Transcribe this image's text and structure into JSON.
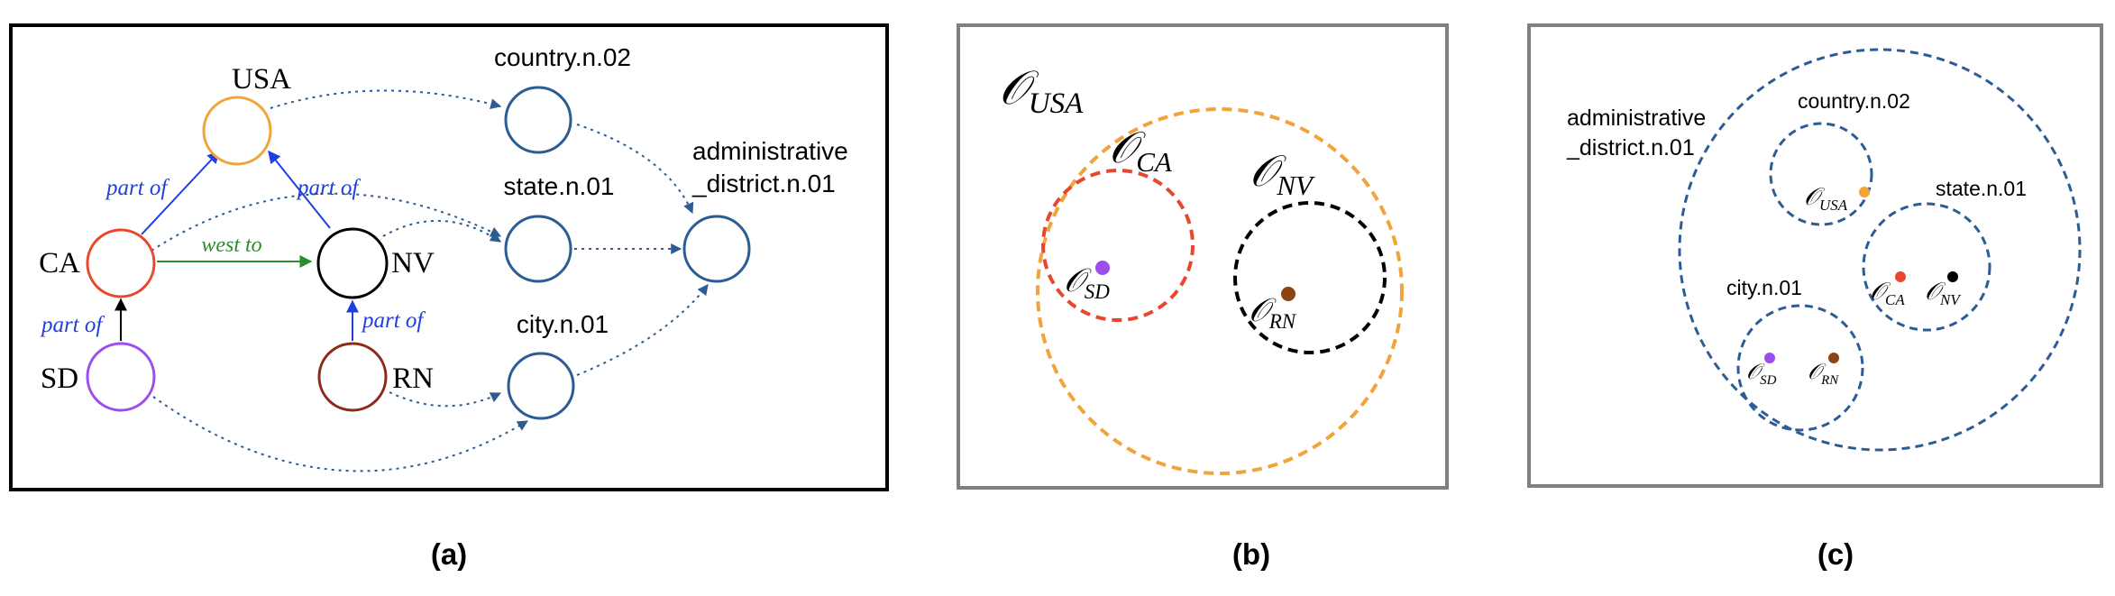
{
  "panel_a": {
    "caption": "(a)",
    "nodes": {
      "usa": "USA",
      "ca": "CA",
      "nv": "NV",
      "sd": "SD",
      "rn": "RN",
      "country": "country.n.02",
      "state": "state.n.01",
      "city": "city.n.01",
      "admin_line1": "administrative",
      "admin_line2": "_district.n.01"
    },
    "edge_labels": {
      "ca_usa": "part of",
      "nv_usa": "part of",
      "ca_nv": "west to",
      "sd_ca": "part of",
      "rn_nv": "part of"
    }
  },
  "panel_b": {
    "caption": "(b)",
    "labels": {
      "usa_sub": "USA",
      "ca_sub": "CA",
      "nv_sub": "NV",
      "sd_sub": "SD",
      "rn_sub": "RN"
    }
  },
  "panel_c": {
    "caption": "(c)",
    "labels": {
      "admin_line1": "administrative",
      "admin_line2": "_district.n.01",
      "country": "country.n.02",
      "state": "state.n.01",
      "city": "city.n.01",
      "usa_sub": "USA",
      "ca_sub": "CA",
      "nv_sub": "NV",
      "sd_sub": "SD",
      "rn_sub": "RN"
    }
  },
  "colors": {
    "usa": "#F0A43A",
    "ca": "#E8472E",
    "nv": "#000000",
    "sd": "#9B4DF0",
    "rn": "#8B2A1A",
    "concept": "#2C5C94",
    "relation": "#1F3FE0",
    "west_to": "#2E8B2E",
    "frame_b_c": "#808080"
  }
}
